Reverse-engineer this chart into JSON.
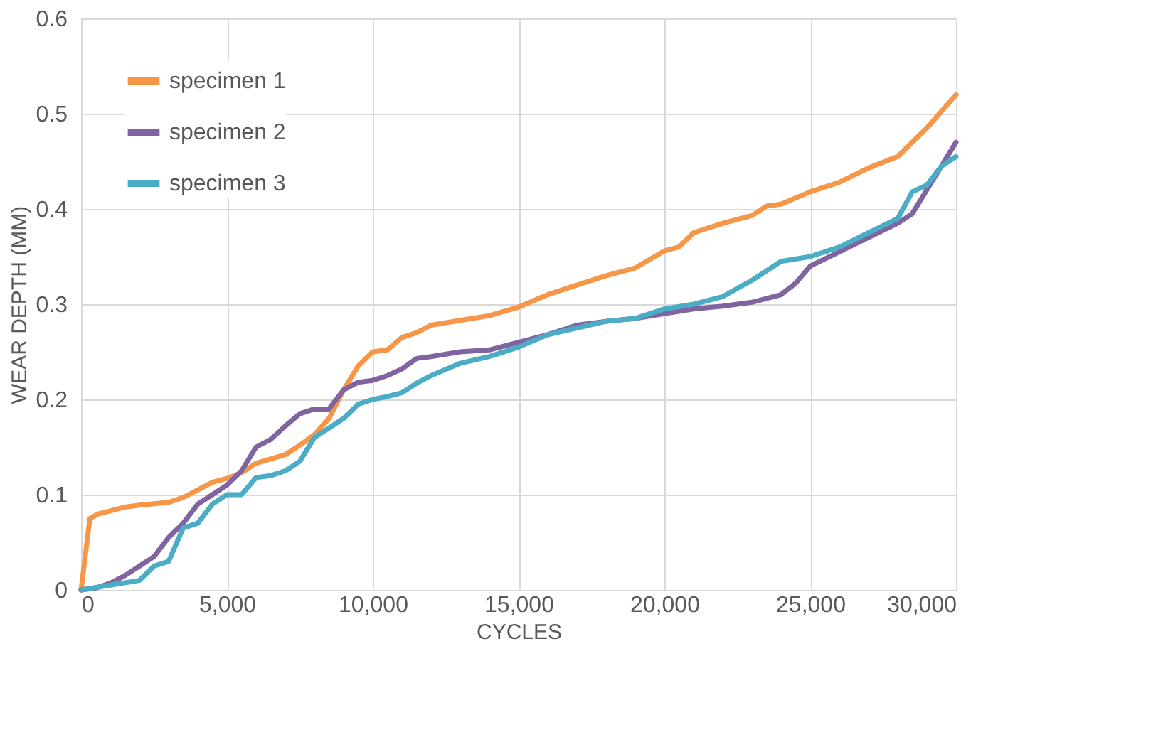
{
  "chart_data": {
    "type": "line",
    "xlabel": "CYCLES",
    "ylabel": "WEAR DEPTH (MM)",
    "xlim": [
      0,
      30000
    ],
    "xticks": [
      0,
      {
        "value": 5000,
        "label": "5,000"
      },
      {
        "value": 10000,
        "label": "10,000"
      },
      {
        "value": 15000,
        "label": "15,000"
      },
      {
        "value": 20000,
        "label": "20,000"
      },
      {
        "value": 25000,
        "label": "25,000"
      },
      {
        "value": 30000,
        "label": "30,000"
      }
    ],
    "ylim": [
      0,
      0.6
    ],
    "yticks": [
      0,
      0.1,
      0.2,
      0.3,
      0.4,
      0.5,
      0.6
    ],
    "grid": true,
    "legend": "top left",
    "marker": "none",
    "line_style": "solid",
    "series": [
      {
        "name": "specimen 1",
        "color": "#f79646",
        "x": [
          0,
          300,
          600,
          1000,
          1500,
          2000,
          3000,
          3500,
          4000,
          4500,
          5000,
          5500,
          6000,
          7000,
          7500,
          8000,
          8500,
          9000,
          9500,
          10000,
          10500,
          11000,
          11500,
          12000,
          13000,
          14000,
          15000,
          16000,
          17000,
          18000,
          19000,
          20000,
          20500,
          21000,
          22000,
          23000,
          23500,
          24000,
          25000,
          26000,
          27000,
          28000,
          29000,
          30000
        ],
        "values": [
          0,
          0.075,
          0.08,
          0.083,
          0.087,
          0.089,
          0.092,
          0.097,
          0.105,
          0.113,
          0.117,
          0.123,
          0.133,
          0.142,
          0.152,
          0.163,
          0.18,
          0.21,
          0.235,
          0.25,
          0.252,
          0.265,
          0.27,
          0.278,
          0.283,
          0.288,
          0.297,
          0.31,
          0.32,
          0.33,
          0.338,
          0.356,
          0.36,
          0.375,
          0.385,
          0.393,
          0.403,
          0.405,
          0.418,
          0.428,
          0.443,
          0.455,
          0.485,
          0.52
        ]
      },
      {
        "name": "specimen 2",
        "color": "#8064a2",
        "x": [
          0,
          500,
          1000,
          1500,
          2000,
          2500,
          3000,
          3500,
          4000,
          4500,
          5000,
          5500,
          6000,
          6500,
          7000,
          7500,
          8000,
          8500,
          9000,
          9500,
          10000,
          10500,
          11000,
          11500,
          12000,
          13000,
          14000,
          15000,
          16000,
          17000,
          18000,
          19000,
          20000,
          21000,
          22000,
          23000,
          24000,
          24500,
          25000,
          26000,
          27000,
          28000,
          28500,
          29000,
          30000
        ],
        "values": [
          0,
          0.002,
          0.007,
          0.015,
          0.025,
          0.035,
          0.055,
          0.07,
          0.09,
          0.1,
          0.11,
          0.125,
          0.15,
          0.158,
          0.172,
          0.185,
          0.19,
          0.19,
          0.21,
          0.218,
          0.22,
          0.225,
          0.232,
          0.243,
          0.245,
          0.25,
          0.252,
          0.26,
          0.268,
          0.278,
          0.282,
          0.285,
          0.29,
          0.295,
          0.298,
          0.302,
          0.31,
          0.322,
          0.34,
          0.355,
          0.37,
          0.385,
          0.395,
          0.42,
          0.47
        ]
      },
      {
        "name": "specimen 3",
        "color": "#4bacc6",
        "x": [
          0,
          1000,
          2000,
          2500,
          3000,
          3500,
          4000,
          4500,
          5000,
          5500,
          6000,
          6500,
          7000,
          7500,
          8000,
          8500,
          9000,
          9500,
          10000,
          10500,
          11000,
          11500,
          12000,
          13000,
          14000,
          15000,
          16000,
          17000,
          18000,
          19000,
          20000,
          21000,
          22000,
          23000,
          24000,
          25000,
          26000,
          27000,
          28000,
          28500,
          29000,
          29500,
          30000
        ],
        "values": [
          0,
          0.005,
          0.01,
          0.025,
          0.03,
          0.065,
          0.07,
          0.09,
          0.1,
          0.1,
          0.118,
          0.12,
          0.125,
          0.135,
          0.16,
          0.17,
          0.18,
          0.195,
          0.2,
          0.203,
          0.207,
          0.217,
          0.225,
          0.238,
          0.245,
          0.255,
          0.268,
          0.275,
          0.282,
          0.285,
          0.295,
          0.3,
          0.308,
          0.325,
          0.345,
          0.35,
          0.36,
          0.375,
          0.39,
          0.418,
          0.425,
          0.445,
          0.455
        ]
      }
    ]
  }
}
